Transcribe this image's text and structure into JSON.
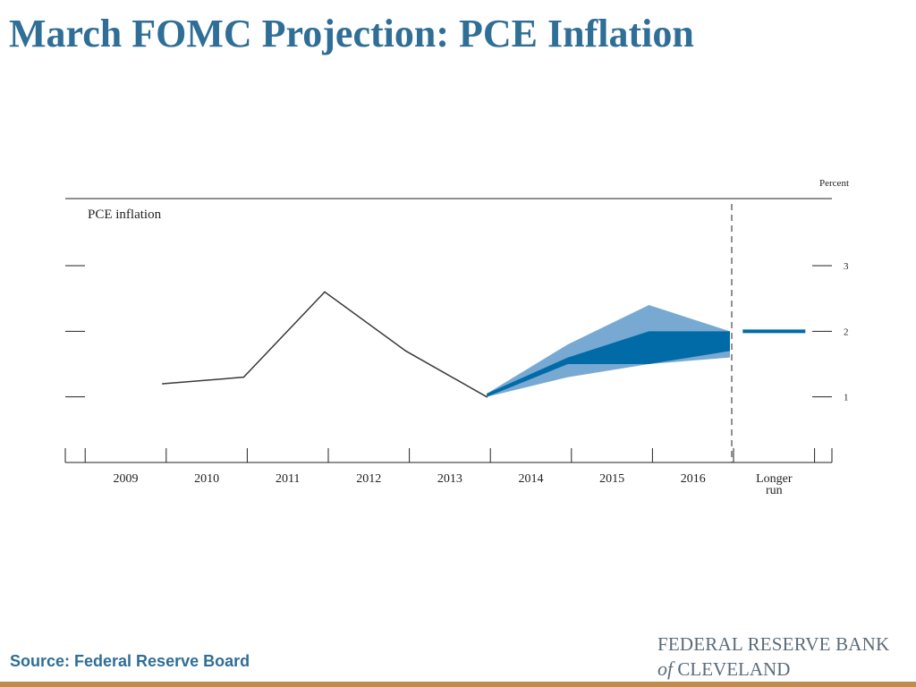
{
  "slide": {
    "title": "March FOMC Projection: PCE Inflation",
    "source": "Source: Federal Reserve Board",
    "logo_line1": "FEDERAL RESERVE BANK",
    "logo_of": "of",
    "logo_line2": "CLEVELAND"
  },
  "chart_data": {
    "type": "line",
    "title": "PCE inflation",
    "ylabel": "Percent",
    "ylim": [
      0,
      4
    ],
    "yticks": [
      1,
      2,
      3
    ],
    "categories": [
      "2009",
      "2010",
      "2011",
      "2012",
      "2013",
      "2014",
      "2015",
      "2016",
      "Longer run"
    ],
    "history": {
      "x": [
        "2009",
        "2010",
        "2011",
        "2012",
        "2013"
      ],
      "values": [
        1.2,
        1.3,
        2.6,
        1.7,
        1.0
      ]
    },
    "range_band": {
      "x": [
        "2013",
        "2014",
        "2015",
        "2016"
      ],
      "low": [
        1.0,
        1.3,
        1.5,
        1.6
      ],
      "high": [
        1.05,
        1.8,
        2.4,
        2.0
      ]
    },
    "central_tendency_band": {
      "x": [
        "2013",
        "2014",
        "2015",
        "2016"
      ],
      "low": [
        1.0,
        1.5,
        1.5,
        1.7
      ],
      "high": [
        1.05,
        1.6,
        2.0,
        2.0
      ]
    },
    "longer_run": {
      "x": "Longer run",
      "value": 2.0
    },
    "colors": {
      "history": "#3a3a3a",
      "range_band": "#78a9d2",
      "central_tendency": "#006ba6",
      "longer_run": "#006ba6",
      "axis": "#222222"
    },
    "grid": false
  }
}
